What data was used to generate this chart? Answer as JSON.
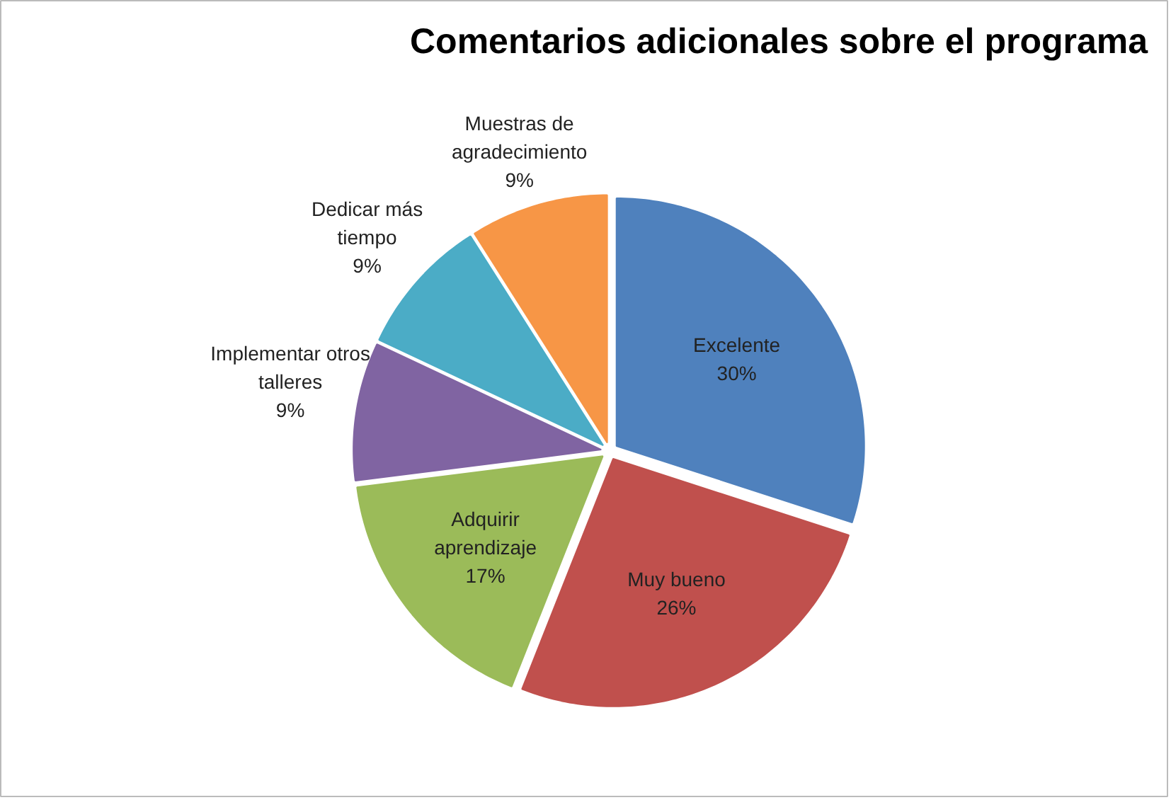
{
  "chart_data": {
    "type": "pie",
    "title": "Comentarios adicionales sobre el programa",
    "categories": [
      "Excelente",
      "Muy bueno",
      "Adquirir aprendizaje",
      "Implementar otros talleres",
      "Dedicar más tiempo",
      "Muestras de agradecimiento"
    ],
    "values": [
      30,
      26,
      17,
      9,
      9,
      9
    ],
    "value_labels": [
      "30%",
      "26%",
      "17%",
      "9%",
      "9%",
      "9%"
    ],
    "colors": [
      "#4f81bd",
      "#c0504d",
      "#9bbb59",
      "#8064a2",
      "#4bacc6",
      "#f79646"
    ]
  }
}
